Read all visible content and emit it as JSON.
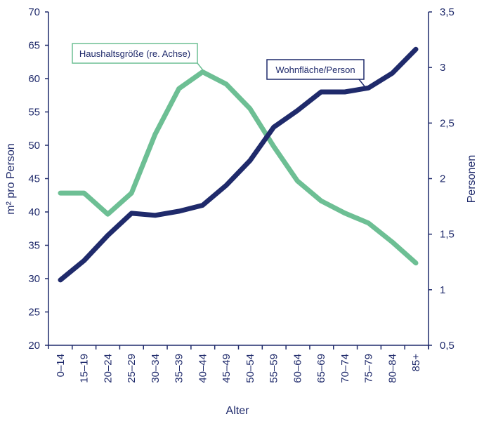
{
  "chart_data": {
    "type": "line",
    "xlabel": "Alter",
    "ylabel_left": "m² pro Person",
    "ylabel_right": "Personen",
    "categories": [
      "0–14",
      "15–19",
      "20–24",
      "25–29",
      "30–34",
      "35–39",
      "40–44",
      "45–49",
      "50–54",
      "55–59",
      "60–64",
      "65–69",
      "70–74",
      "75–79",
      "80–84",
      "85+"
    ],
    "y_left": {
      "range": [
        20,
        70
      ],
      "ticks": [
        "20",
        "25",
        "30",
        "35",
        "40",
        "45",
        "50",
        "55",
        "60",
        "65",
        "70"
      ]
    },
    "y_right": {
      "range": [
        0.5,
        3.5
      ],
      "ticks": [
        "0,5",
        "1",
        "1,5",
        "2",
        "2,5",
        "3",
        "3,5"
      ]
    },
    "grid": false,
    "series": [
      {
        "name": "Wohnfläche/Person",
        "axis": "left",
        "color": "#1f2a6b",
        "values": [
          29.8,
          32.7,
          36.5,
          39.8,
          39.5,
          40.1,
          41.0,
          44.0,
          47.7,
          52.7,
          55.2,
          58.0,
          58.0,
          58.6,
          60.8,
          64.4
        ]
      },
      {
        "name": "Haushaltsgröße (re. Achse)",
        "axis": "right",
        "color": "#6dbf94",
        "values": [
          1.87,
          1.87,
          1.68,
          1.87,
          2.4,
          2.81,
          2.96,
          2.85,
          2.63,
          2.29,
          1.98,
          1.8,
          1.69,
          1.6,
          1.43,
          1.24
        ]
      }
    ],
    "annotations": [
      {
        "series": "Haushaltsgröße (re. Achse)",
        "text": "Haushaltsgröße (re. Achse)"
      },
      {
        "series": "Wohnfläche/Person",
        "text": "Wohnfläche/Person"
      }
    ]
  }
}
